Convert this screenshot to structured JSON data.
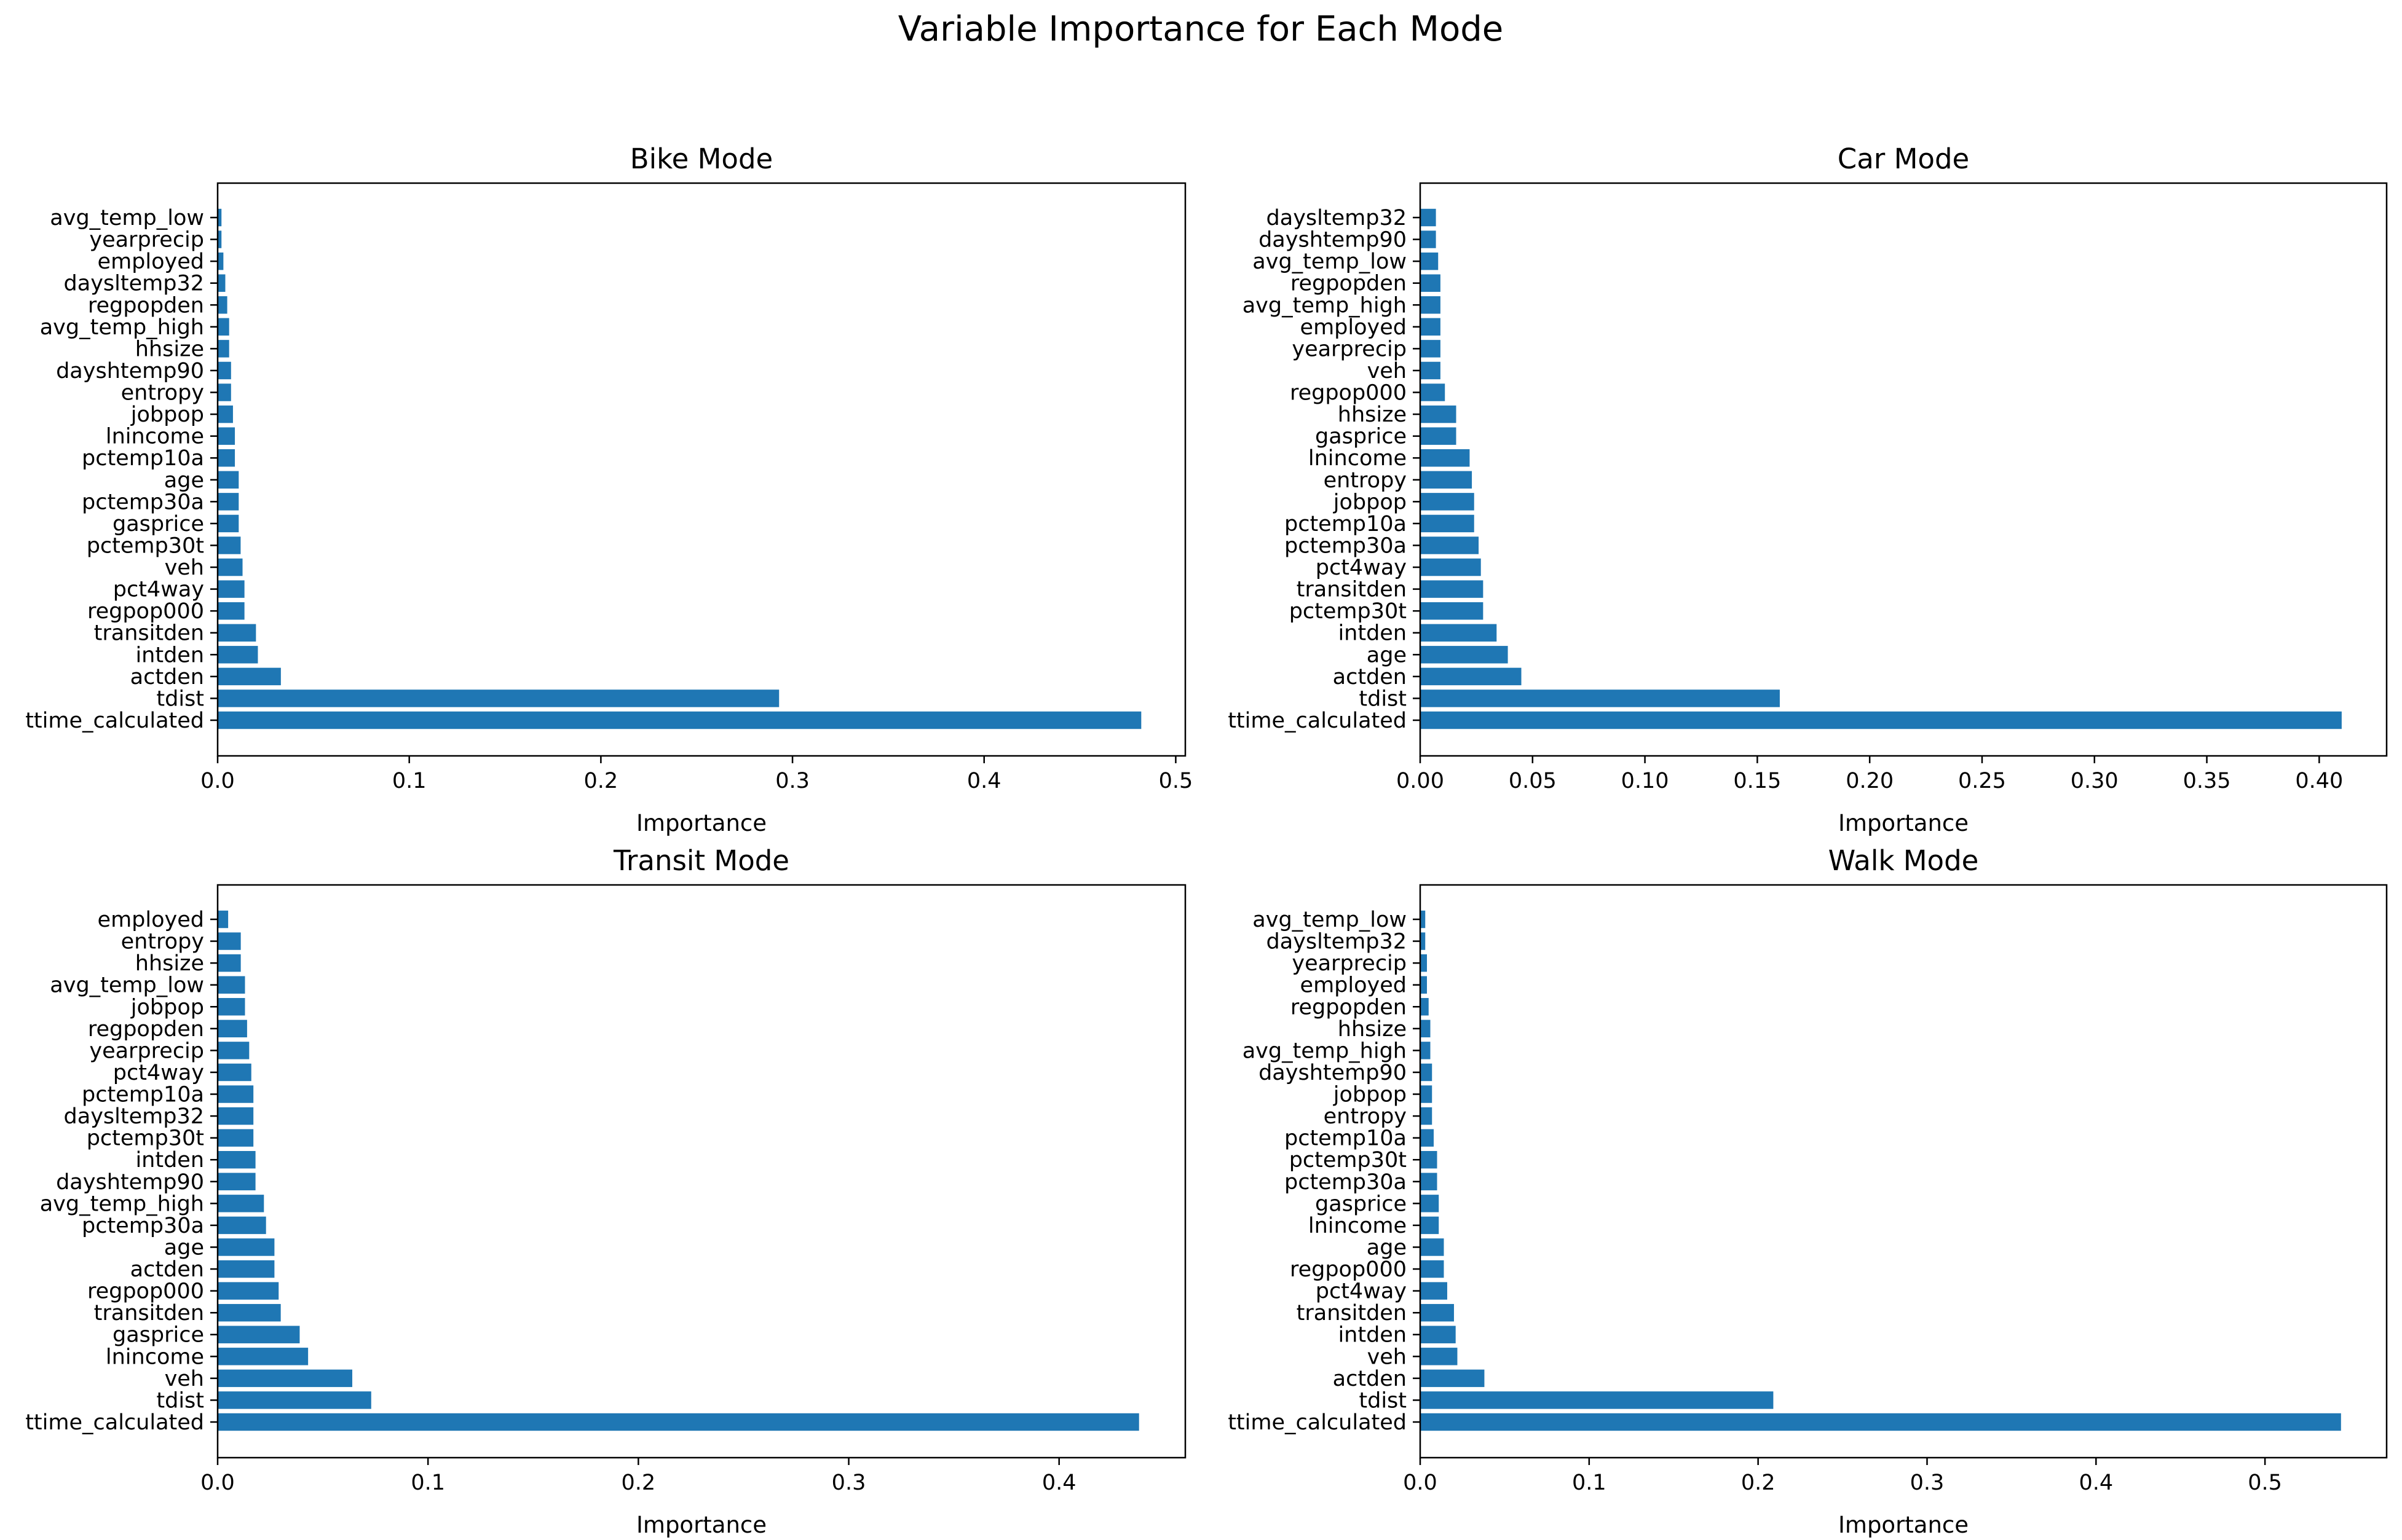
{
  "chart_data": {
    "type": "bar",
    "orientation": "horizontal",
    "title": "Variable Importance for Each Mode",
    "bar_color": "#1f77b4",
    "subplots": [
      {
        "title": "Bike Mode",
        "xlabel": "Importance",
        "xlim": [
          0,
          0.505
        ],
        "xticks": [
          "0.0",
          "0.1",
          "0.2",
          "0.3",
          "0.4",
          "0.5"
        ],
        "xtick_values": [
          0,
          0.1,
          0.2,
          0.3,
          0.4,
          0.5
        ],
        "categories": [
          "avg_temp_low",
          "yearprecip",
          "employed",
          "daysltemp32",
          "regpopden",
          "avg_temp_high",
          "hhsize",
          "dayshtemp90",
          "entropy",
          "jobpop",
          "lnincome",
          "pctemp10a",
          "age",
          "pctemp30a",
          "gasprice",
          "pctemp30t",
          "veh",
          "pct4way",
          "regpop000",
          "transitden",
          "intden",
          "actden",
          "tdist",
          "ttime_calculated"
        ],
        "values": [
          0.002,
          0.002,
          0.003,
          0.004,
          0.005,
          0.006,
          0.006,
          0.007,
          0.007,
          0.008,
          0.009,
          0.009,
          0.011,
          0.011,
          0.011,
          0.012,
          0.013,
          0.014,
          0.014,
          0.02,
          0.021,
          0.033,
          0.293,
          0.482
        ]
      },
      {
        "title": "Car Mode",
        "xlabel": "Importance",
        "xlim": [
          0,
          0.43
        ],
        "xticks": [
          "0.00",
          "0.05",
          "0.10",
          "0.15",
          "0.20",
          "0.25",
          "0.30",
          "0.35",
          "0.40"
        ],
        "xtick_values": [
          0,
          0.05,
          0.1,
          0.15,
          0.2,
          0.25,
          0.3,
          0.35,
          0.4
        ],
        "categories": [
          "daysltemp32",
          "dayshtemp90",
          "avg_temp_low",
          "regpopden",
          "avg_temp_high",
          "employed",
          "yearprecip",
          "veh",
          "regpop000",
          "hhsize",
          "gasprice",
          "lnincome",
          "entropy",
          "jobpop",
          "pctemp10a",
          "pctemp30a",
          "pct4way",
          "transitden",
          "pctemp30t",
          "intden",
          "age",
          "actden",
          "tdist",
          "ttime_calculated"
        ],
        "values": [
          0.007,
          0.007,
          0.008,
          0.009,
          0.009,
          0.009,
          0.009,
          0.009,
          0.011,
          0.016,
          0.016,
          0.022,
          0.023,
          0.024,
          0.024,
          0.026,
          0.027,
          0.028,
          0.028,
          0.034,
          0.039,
          0.045,
          0.16,
          0.41
        ]
      },
      {
        "title": "Transit Mode",
        "xlabel": "Importance",
        "xlim": [
          0,
          0.46
        ],
        "xticks": [
          "0.0",
          "0.1",
          "0.2",
          "0.3",
          "0.4"
        ],
        "xtick_values": [
          0,
          0.1,
          0.2,
          0.3,
          0.4
        ],
        "categories": [
          "employed",
          "entropy",
          "hhsize",
          "avg_temp_low",
          "jobpop",
          "regpopden",
          "yearprecip",
          "pct4way",
          "pctemp10a",
          "daysltemp32",
          "pctemp30t",
          "intden",
          "dayshtemp90",
          "avg_temp_high",
          "pctemp30a",
          "age",
          "actden",
          "regpop000",
          "transitden",
          "gasprice",
          "lnincome",
          "veh",
          "tdist",
          "ttime_calculated"
        ],
        "values": [
          0.005,
          0.011,
          0.011,
          0.013,
          0.013,
          0.014,
          0.015,
          0.016,
          0.017,
          0.017,
          0.017,
          0.018,
          0.018,
          0.022,
          0.023,
          0.027,
          0.027,
          0.029,
          0.03,
          0.039,
          0.043,
          0.064,
          0.073,
          0.438
        ]
      },
      {
        "title": "Walk Mode",
        "xlabel": "Importance",
        "xlim": [
          0,
          0.572
        ],
        "xticks": [
          "0.0",
          "0.1",
          "0.2",
          "0.3",
          "0.4",
          "0.5"
        ],
        "xtick_values": [
          0,
          0.1,
          0.2,
          0.3,
          0.4,
          0.5
        ],
        "categories": [
          "avg_temp_low",
          "daysltemp32",
          "yearprecip",
          "employed",
          "regpopden",
          "hhsize",
          "avg_temp_high",
          "dayshtemp90",
          "jobpop",
          "entropy",
          "pctemp10a",
          "pctemp30t",
          "pctemp30a",
          "gasprice",
          "lnincome",
          "age",
          "regpop000",
          "pct4way",
          "transitden",
          "intden",
          "veh",
          "actden",
          "tdist",
          "ttime_calculated"
        ],
        "values": [
          0.003,
          0.003,
          0.004,
          0.004,
          0.005,
          0.006,
          0.006,
          0.007,
          0.007,
          0.007,
          0.008,
          0.01,
          0.01,
          0.011,
          0.011,
          0.014,
          0.014,
          0.016,
          0.02,
          0.021,
          0.022,
          0.038,
          0.209,
          0.545
        ]
      }
    ]
  }
}
